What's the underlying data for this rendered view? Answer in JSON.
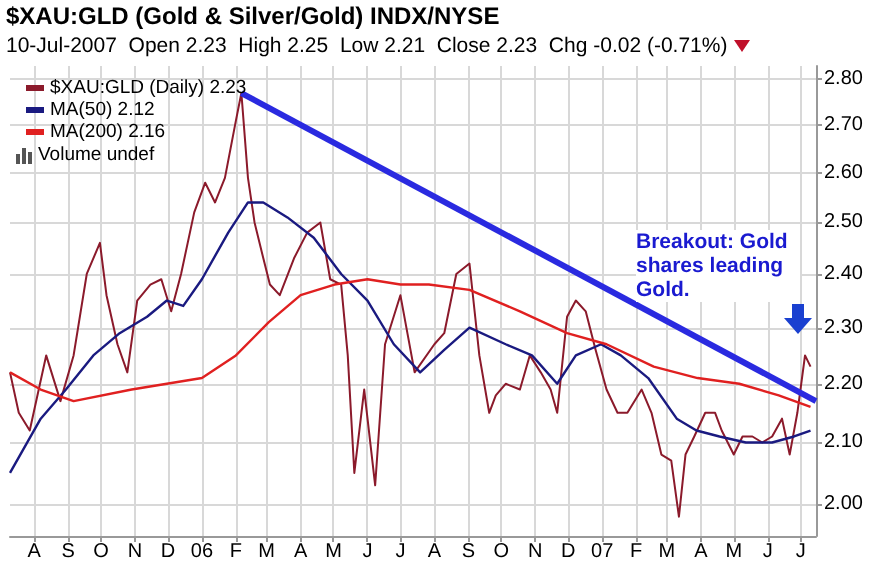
{
  "chart_data": {
    "type": "line",
    "title": "$XAU:GLD (Gold & Silver/Gold) INDX/NYSE",
    "subtitle": "10-Jul-2007  Open 2.23  High 2.25  Low 2.21  Close 2.23  Chg -0.02 (-0.71%)",
    "annotations": [
      "Volume undef",
      "Breakout: Gold shares leading Gold."
    ],
    "series": [
      {
        "name": "$XAU:GLD (Daily) 2.23",
        "color": "#8b1a2b",
        "x": [
          "2005-07-10",
          "2005-07-18",
          "2005-07-28",
          "2005-08-12",
          "2005-08-25",
          "2005-09-06",
          "2005-09-18",
          "2005-09-30",
          "2005-10-06",
          "2005-10-16",
          "2005-10-25",
          "2005-11-03",
          "2005-11-15",
          "2005-11-25",
          "2005-12-04",
          "2005-12-13",
          "2005-12-25",
          "2006-01-04",
          "2006-01-13",
          "2006-01-22",
          "2006-02-01",
          "2006-02-06",
          "2006-02-12",
          "2006-02-18",
          "2006-02-26",
          "2006-03-04",
          "2006-03-13",
          "2006-03-26",
          "2006-04-07",
          "2006-04-19",
          "2006-04-28",
          "2006-05-08",
          "2006-05-14",
          "2006-05-20",
          "2006-05-29",
          "2006-06-08",
          "2006-06-17",
          "2006-07-01",
          "2006-07-14",
          "2006-08-01",
          "2006-08-10",
          "2006-08-21",
          "2006-09-02",
          "2006-09-11",
          "2006-09-20",
          "2006-09-26",
          "2006-10-05",
          "2006-10-18",
          "2006-10-27",
          "2006-11-06",
          "2006-11-15",
          "2006-11-21",
          "2006-11-30",
          "2006-12-08",
          "2006-12-17",
          "2006-12-26",
          "2007-01-05",
          "2007-01-15",
          "2007-01-24",
          "2007-02-06",
          "2007-02-15",
          "2007-02-24",
          "2007-03-05",
          "2007-03-12",
          "2007-03-18",
          "2007-03-26",
          "2007-04-05",
          "2007-04-14",
          "2007-04-20",
          "2007-05-01",
          "2007-05-09",
          "2007-05-18",
          "2007-05-27",
          "2007-06-05",
          "2007-06-14",
          "2007-06-21",
          "2007-06-28",
          "2007-07-05",
          "2007-07-10"
        ],
        "values": [
          2.22,
          2.15,
          2.12,
          2.25,
          2.17,
          2.25,
          2.4,
          2.46,
          2.36,
          2.27,
          2.22,
          2.35,
          2.38,
          2.39,
          2.33,
          2.4,
          2.52,
          2.58,
          2.54,
          2.59,
          2.71,
          2.77,
          2.59,
          2.5,
          2.43,
          2.38,
          2.36,
          2.43,
          2.48,
          2.5,
          2.39,
          2.38,
          2.25,
          2.05,
          2.19,
          2.03,
          2.27,
          2.36,
          2.22,
          2.27,
          2.29,
          2.4,
          2.42,
          2.25,
          2.15,
          2.18,
          2.2,
          2.19,
          2.25,
          2.22,
          2.19,
          2.15,
          2.32,
          2.35,
          2.33,
          2.26,
          2.19,
          2.15,
          2.15,
          2.19,
          2.15,
          2.08,
          2.07,
          1.98,
          2.08,
          2.11,
          2.15,
          2.15,
          2.12,
          2.08,
          2.11,
          2.11,
          2.1,
          2.11,
          2.14,
          2.08,
          2.15,
          2.25,
          2.23
        ]
      },
      {
        "name": "MA(50) 2.12",
        "color": "#1a1a80",
        "x": [
          "2005-07-10",
          "2005-08-07",
          "2005-08-30",
          "2005-09-24",
          "2005-10-18",
          "2005-11-12",
          "2005-11-30",
          "2005-12-15",
          "2006-01-01",
          "2006-01-25",
          "2006-02-12",
          "2006-02-26",
          "2006-03-20",
          "2006-04-13",
          "2006-05-08",
          "2006-06-01",
          "2006-06-25",
          "2006-07-19",
          "2006-08-10",
          "2006-09-02",
          "2006-10-05",
          "2006-10-29",
          "2006-11-21",
          "2006-12-08",
          "2006-12-31",
          "2007-01-18",
          "2007-02-12",
          "2007-03-10",
          "2007-03-28",
          "2007-04-18",
          "2007-05-12",
          "2007-06-05",
          "2007-06-25",
          "2007-07-10"
        ],
        "values": [
          2.05,
          2.14,
          2.19,
          2.25,
          2.29,
          2.32,
          2.35,
          2.34,
          2.39,
          2.48,
          2.54,
          2.54,
          2.51,
          2.47,
          2.4,
          2.35,
          2.27,
          2.22,
          2.26,
          2.3,
          2.27,
          2.25,
          2.2,
          2.25,
          2.27,
          2.25,
          2.21,
          2.14,
          2.12,
          2.11,
          2.1,
          2.1,
          2.11,
          2.12
        ]
      },
      {
        "name": "MA(200) 2.16",
        "color": "#e02020",
        "x": [
          "2005-07-10",
          "2005-08-07",
          "2005-09-06",
          "2005-10-29",
          "2006-01-01",
          "2006-02-01",
          "2006-03-03",
          "2006-04-01",
          "2006-05-02",
          "2006-06-01",
          "2006-07-01",
          "2006-07-27",
          "2006-09-02",
          "2006-10-18",
          "2006-11-30",
          "2007-01-05",
          "2007-02-17",
          "2007-03-29",
          "2007-05-06",
          "2007-06-11",
          "2007-07-10"
        ],
        "values": [
          2.22,
          2.19,
          2.17,
          2.19,
          2.21,
          2.25,
          2.31,
          2.36,
          2.38,
          2.39,
          2.38,
          2.38,
          2.37,
          2.33,
          2.29,
          2.27,
          2.23,
          2.21,
          2.2,
          2.18,
          2.16
        ]
      },
      {
        "type": "line",
        "color": "#2a2ae0",
        "x": [
          "2006-02-06",
          "2007-07-15"
        ],
        "values": [
          2.77,
          2.17
        ]
      }
    ],
    "xlim": [
      "2005-07-10",
      "2007-07-15"
    ],
    "xticks": [
      {
        "value": "2005-08-01",
        "label": "A"
      },
      {
        "value": "2005-09-01",
        "label": "S"
      },
      {
        "value": "2005-10-01",
        "label": "O"
      },
      {
        "value": "2005-11-01",
        "label": "N"
      },
      {
        "value": "2005-12-01",
        "label": "D"
      },
      {
        "value": "2006-01-01",
        "label": "06"
      },
      {
        "value": "2006-02-01",
        "label": "F"
      },
      {
        "value": "2006-03-01",
        "label": "M"
      },
      {
        "value": "2006-04-01",
        "label": "A"
      },
      {
        "value": "2006-05-01",
        "label": "M"
      },
      {
        "value": "2006-06-01",
        "label": "J"
      },
      {
        "value": "2006-07-01",
        "label": "J"
      },
      {
        "value": "2006-08-01",
        "label": "A"
      },
      {
        "value": "2006-09-01",
        "label": "S"
      },
      {
        "value": "2006-10-01",
        "label": "O"
      },
      {
        "value": "2006-11-01",
        "label": "N"
      },
      {
        "value": "2006-12-01",
        "label": "D"
      },
      {
        "value": "2007-01-01",
        "label": "07"
      },
      {
        "value": "2007-02-01",
        "label": "F"
      },
      {
        "value": "2007-03-01",
        "label": "M"
      },
      {
        "value": "2007-04-01",
        "label": "A"
      },
      {
        "value": "2007-05-01",
        "label": "M"
      },
      {
        "value": "2007-06-01",
        "label": "J"
      },
      {
        "value": "2007-07-01",
        "label": "J"
      }
    ],
    "ylim": [
      1.95,
      2.83
    ],
    "yticks": [
      {
        "value": 2.0,
        "label": "2.00"
      },
      {
        "value": 2.1,
        "label": "2.10"
      },
      {
        "value": 2.2,
        "label": "2.20"
      },
      {
        "value": 2.3,
        "label": "2.30"
      },
      {
        "value": 2.4,
        "label": "2.40"
      },
      {
        "value": 2.5,
        "label": "2.50"
      },
      {
        "value": 2.6,
        "label": "2.60"
      },
      {
        "value": 2.7,
        "label": "2.70"
      },
      {
        "value": 2.8,
        "label": "2.80"
      }
    ],
    "log": "y",
    "grid": true,
    "legend": "top left",
    "marker": "none",
    "line_style": "solid"
  }
}
